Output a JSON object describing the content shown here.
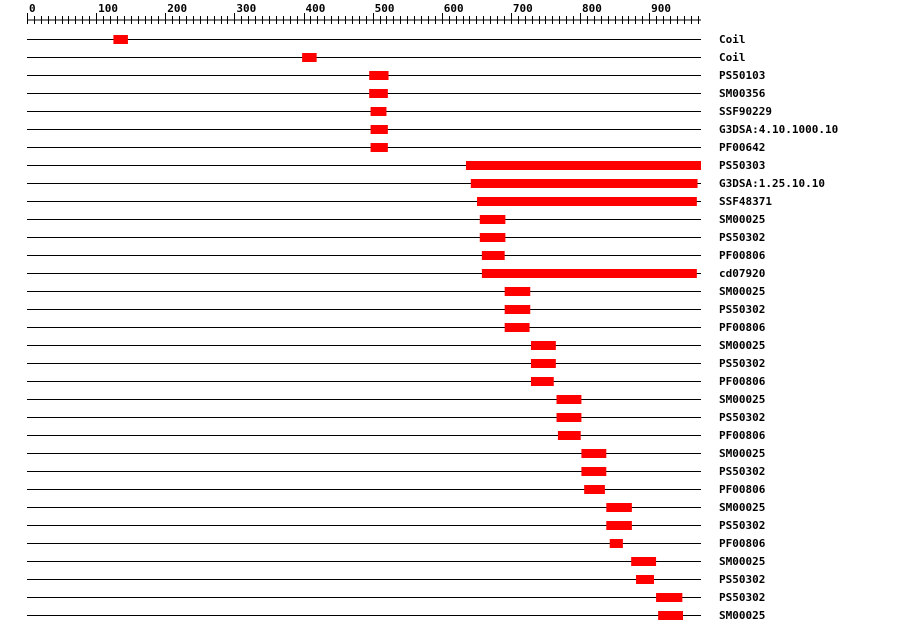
{
  "chart_data": {
    "type": "domain-track",
    "axis": {
      "min": 0,
      "max": 975,
      "major_step": 100,
      "minor_step": 10,
      "tick_labels": [
        "0",
        "100",
        "200",
        "300",
        "400",
        "500",
        "600",
        "700",
        "800",
        "900"
      ]
    },
    "bar_color": "#ff0000",
    "tracks": [
      {
        "label": "Coil",
        "start": 125,
        "end": 146
      },
      {
        "label": "Coil",
        "start": 398,
        "end": 419
      },
      {
        "label": "PS50103",
        "start": 495,
        "end": 523
      },
      {
        "label": "SM00356",
        "start": 495,
        "end": 522
      },
      {
        "label": "SSF90229",
        "start": 497,
        "end": 520
      },
      {
        "label": "G3DSA:4.10.1000.10",
        "start": 497,
        "end": 522
      },
      {
        "label": "PF00642",
        "start": 497,
        "end": 522
      },
      {
        "label": "PS50303",
        "start": 635,
        "end": 975
      },
      {
        "label": "G3DSA:1.25.10.10",
        "start": 642,
        "end": 970
      },
      {
        "label": "SSF48371",
        "start": 651,
        "end": 969
      },
      {
        "label": "SM00025",
        "start": 655,
        "end": 692
      },
      {
        "label": "PS50302",
        "start": 655,
        "end": 692
      },
      {
        "label": "PF00806",
        "start": 658,
        "end": 691
      },
      {
        "label": "cd07920",
        "start": 658,
        "end": 969
      },
      {
        "label": "SM00025",
        "start": 691,
        "end": 728
      },
      {
        "label": "PS50302",
        "start": 691,
        "end": 728
      },
      {
        "label": "PF00806",
        "start": 691,
        "end": 727
      },
      {
        "label": "SM00025",
        "start": 729,
        "end": 765
      },
      {
        "label": "PS50302",
        "start": 729,
        "end": 765
      },
      {
        "label": "PF00806",
        "start": 729,
        "end": 762
      },
      {
        "label": "SM00025",
        "start": 766,
        "end": 802
      },
      {
        "label": "PS50302",
        "start": 766,
        "end": 802
      },
      {
        "label": "PF00806",
        "start": 768,
        "end": 801
      },
      {
        "label": "SM00025",
        "start": 802,
        "end": 838
      },
      {
        "label": "PS50302",
        "start": 802,
        "end": 838
      },
      {
        "label": "PF00806",
        "start": 806,
        "end": 836
      },
      {
        "label": "SM00025",
        "start": 838,
        "end": 875
      },
      {
        "label": "PS50302",
        "start": 838,
        "end": 875
      },
      {
        "label": "PF00806",
        "start": 843,
        "end": 862
      },
      {
        "label": "SM00025",
        "start": 874,
        "end": 910
      },
      {
        "label": "PS50302",
        "start": 881,
        "end": 907
      },
      {
        "label": "PS50302",
        "start": 910,
        "end": 948
      },
      {
        "label": "SM00025",
        "start": 913,
        "end": 949
      }
    ]
  }
}
